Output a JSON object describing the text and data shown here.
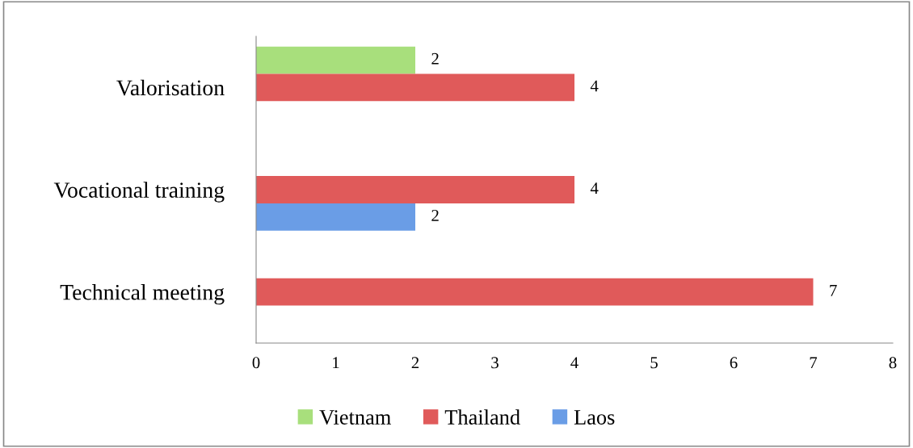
{
  "chart_data": {
    "type": "bar",
    "orientation": "horizontal",
    "categories": [
      "Valorisation",
      "Vocational training",
      "Technical meeting"
    ],
    "series": [
      {
        "name": "Vietnam",
        "color": "#a8df7c",
        "values": [
          2,
          null,
          null
        ]
      },
      {
        "name": "Thailand",
        "color": "#e05a5a",
        "values": [
          4,
          4,
          7
        ]
      },
      {
        "name": "Laos",
        "color": "#6a9de6",
        "values": [
          null,
          2,
          null
        ]
      }
    ],
    "xlim": [
      0,
      8
    ],
    "xticks": [
      0,
      1,
      2,
      3,
      4,
      5,
      6,
      7,
      8
    ],
    "data_labels": true,
    "grid": false,
    "legend": "bottom"
  }
}
